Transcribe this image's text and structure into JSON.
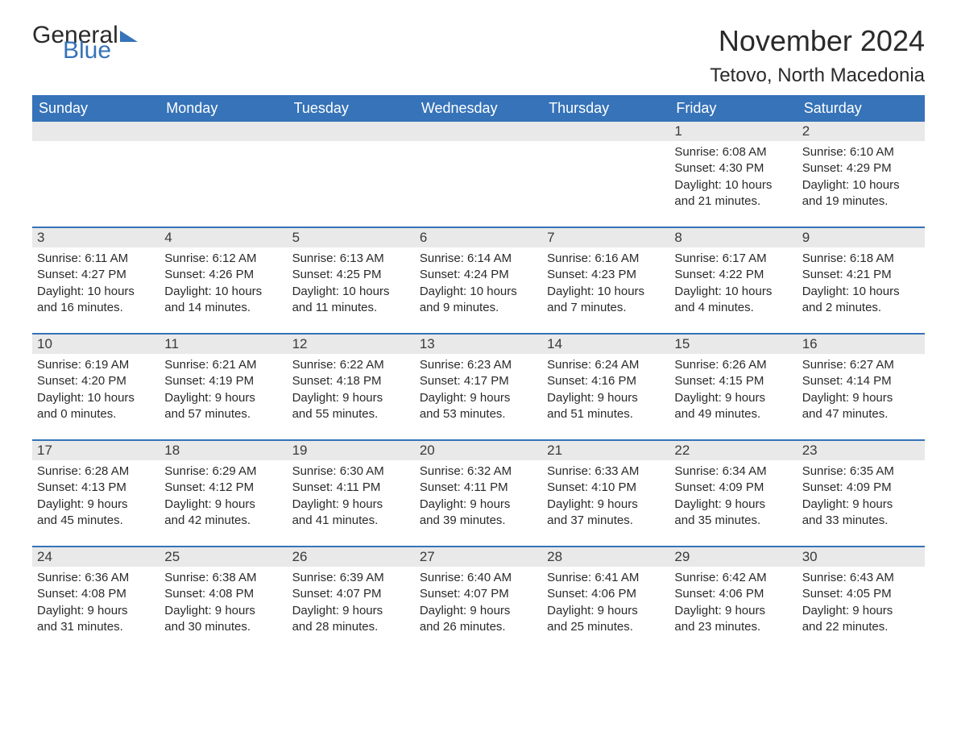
{
  "logo": {
    "text1": "General",
    "text2": "Blue"
  },
  "header": {
    "month_title": "November 2024",
    "location": "Tetovo, North Macedonia"
  },
  "colors": {
    "primary": "#3673b8",
    "dayBar": "#e9e9e9",
    "text": "#2a2a2a",
    "background": "#ffffff",
    "white": "#ffffff"
  },
  "weekdays": [
    "Sunday",
    "Monday",
    "Tuesday",
    "Wednesday",
    "Thursday",
    "Friday",
    "Saturday"
  ],
  "weeks": [
    [
      {
        "day": "",
        "empty": true
      },
      {
        "day": "",
        "empty": true
      },
      {
        "day": "",
        "empty": true
      },
      {
        "day": "",
        "empty": true
      },
      {
        "day": "",
        "empty": true
      },
      {
        "day": "1",
        "sunrise": "Sunrise: 6:08 AM",
        "sunset": "Sunset: 4:30 PM",
        "daylight1": "Daylight: 10 hours",
        "daylight2": "and 21 minutes."
      },
      {
        "day": "2",
        "sunrise": "Sunrise: 6:10 AM",
        "sunset": "Sunset: 4:29 PM",
        "daylight1": "Daylight: 10 hours",
        "daylight2": "and 19 minutes."
      }
    ],
    [
      {
        "day": "3",
        "sunrise": "Sunrise: 6:11 AM",
        "sunset": "Sunset: 4:27 PM",
        "daylight1": "Daylight: 10 hours",
        "daylight2": "and 16 minutes."
      },
      {
        "day": "4",
        "sunrise": "Sunrise: 6:12 AM",
        "sunset": "Sunset: 4:26 PM",
        "daylight1": "Daylight: 10 hours",
        "daylight2": "and 14 minutes."
      },
      {
        "day": "5",
        "sunrise": "Sunrise: 6:13 AM",
        "sunset": "Sunset: 4:25 PM",
        "daylight1": "Daylight: 10 hours",
        "daylight2": "and 11 minutes."
      },
      {
        "day": "6",
        "sunrise": "Sunrise: 6:14 AM",
        "sunset": "Sunset: 4:24 PM",
        "daylight1": "Daylight: 10 hours",
        "daylight2": "and 9 minutes."
      },
      {
        "day": "7",
        "sunrise": "Sunrise: 6:16 AM",
        "sunset": "Sunset: 4:23 PM",
        "daylight1": "Daylight: 10 hours",
        "daylight2": "and 7 minutes."
      },
      {
        "day": "8",
        "sunrise": "Sunrise: 6:17 AM",
        "sunset": "Sunset: 4:22 PM",
        "daylight1": "Daylight: 10 hours",
        "daylight2": "and 4 minutes."
      },
      {
        "day": "9",
        "sunrise": "Sunrise: 6:18 AM",
        "sunset": "Sunset: 4:21 PM",
        "daylight1": "Daylight: 10 hours",
        "daylight2": "and 2 minutes."
      }
    ],
    [
      {
        "day": "10",
        "sunrise": "Sunrise: 6:19 AM",
        "sunset": "Sunset: 4:20 PM",
        "daylight1": "Daylight: 10 hours",
        "daylight2": "and 0 minutes."
      },
      {
        "day": "11",
        "sunrise": "Sunrise: 6:21 AM",
        "sunset": "Sunset: 4:19 PM",
        "daylight1": "Daylight: 9 hours",
        "daylight2": "and 57 minutes."
      },
      {
        "day": "12",
        "sunrise": "Sunrise: 6:22 AM",
        "sunset": "Sunset: 4:18 PM",
        "daylight1": "Daylight: 9 hours",
        "daylight2": "and 55 minutes."
      },
      {
        "day": "13",
        "sunrise": "Sunrise: 6:23 AM",
        "sunset": "Sunset: 4:17 PM",
        "daylight1": "Daylight: 9 hours",
        "daylight2": "and 53 minutes."
      },
      {
        "day": "14",
        "sunrise": "Sunrise: 6:24 AM",
        "sunset": "Sunset: 4:16 PM",
        "daylight1": "Daylight: 9 hours",
        "daylight2": "and 51 minutes."
      },
      {
        "day": "15",
        "sunrise": "Sunrise: 6:26 AM",
        "sunset": "Sunset: 4:15 PM",
        "daylight1": "Daylight: 9 hours",
        "daylight2": "and 49 minutes."
      },
      {
        "day": "16",
        "sunrise": "Sunrise: 6:27 AM",
        "sunset": "Sunset: 4:14 PM",
        "daylight1": "Daylight: 9 hours",
        "daylight2": "and 47 minutes."
      }
    ],
    [
      {
        "day": "17",
        "sunrise": "Sunrise: 6:28 AM",
        "sunset": "Sunset: 4:13 PM",
        "daylight1": "Daylight: 9 hours",
        "daylight2": "and 45 minutes."
      },
      {
        "day": "18",
        "sunrise": "Sunrise: 6:29 AM",
        "sunset": "Sunset: 4:12 PM",
        "daylight1": "Daylight: 9 hours",
        "daylight2": "and 42 minutes."
      },
      {
        "day": "19",
        "sunrise": "Sunrise: 6:30 AM",
        "sunset": "Sunset: 4:11 PM",
        "daylight1": "Daylight: 9 hours",
        "daylight2": "and 41 minutes."
      },
      {
        "day": "20",
        "sunrise": "Sunrise: 6:32 AM",
        "sunset": "Sunset: 4:11 PM",
        "daylight1": "Daylight: 9 hours",
        "daylight2": "and 39 minutes."
      },
      {
        "day": "21",
        "sunrise": "Sunrise: 6:33 AM",
        "sunset": "Sunset: 4:10 PM",
        "daylight1": "Daylight: 9 hours",
        "daylight2": "and 37 minutes."
      },
      {
        "day": "22",
        "sunrise": "Sunrise: 6:34 AM",
        "sunset": "Sunset: 4:09 PM",
        "daylight1": "Daylight: 9 hours",
        "daylight2": "and 35 minutes."
      },
      {
        "day": "23",
        "sunrise": "Sunrise: 6:35 AM",
        "sunset": "Sunset: 4:09 PM",
        "daylight1": "Daylight: 9 hours",
        "daylight2": "and 33 minutes."
      }
    ],
    [
      {
        "day": "24",
        "sunrise": "Sunrise: 6:36 AM",
        "sunset": "Sunset: 4:08 PM",
        "daylight1": "Daylight: 9 hours",
        "daylight2": "and 31 minutes."
      },
      {
        "day": "25",
        "sunrise": "Sunrise: 6:38 AM",
        "sunset": "Sunset: 4:08 PM",
        "daylight1": "Daylight: 9 hours",
        "daylight2": "and 30 minutes."
      },
      {
        "day": "26",
        "sunrise": "Sunrise: 6:39 AM",
        "sunset": "Sunset: 4:07 PM",
        "daylight1": "Daylight: 9 hours",
        "daylight2": "and 28 minutes."
      },
      {
        "day": "27",
        "sunrise": "Sunrise: 6:40 AM",
        "sunset": "Sunset: 4:07 PM",
        "daylight1": "Daylight: 9 hours",
        "daylight2": "and 26 minutes."
      },
      {
        "day": "28",
        "sunrise": "Sunrise: 6:41 AM",
        "sunset": "Sunset: 4:06 PM",
        "daylight1": "Daylight: 9 hours",
        "daylight2": "and 25 minutes."
      },
      {
        "day": "29",
        "sunrise": "Sunrise: 6:42 AM",
        "sunset": "Sunset: 4:06 PM",
        "daylight1": "Daylight: 9 hours",
        "daylight2": "and 23 minutes."
      },
      {
        "day": "30",
        "sunrise": "Sunrise: 6:43 AM",
        "sunset": "Sunset: 4:05 PM",
        "daylight1": "Daylight: 9 hours",
        "daylight2": "and 22 minutes."
      }
    ]
  ]
}
